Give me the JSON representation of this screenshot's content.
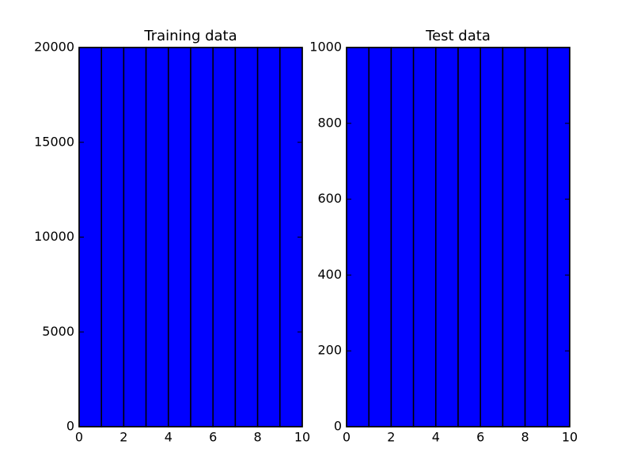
{
  "chart_data": [
    {
      "type": "histogram",
      "title": "Training data",
      "bins": [
        0,
        1,
        2,
        3,
        4,
        5,
        6,
        7,
        8,
        9,
        10
      ],
      "counts": [
        20000,
        20000,
        20000,
        20000,
        20000,
        20000,
        20000,
        20000,
        20000,
        20000
      ],
      "color": "#0000ff",
      "xlim": [
        0,
        10
      ],
      "xticks": [
        0,
        2,
        4,
        6,
        8,
        10
      ],
      "ylim": [
        0,
        20000
      ],
      "yticks": [
        0,
        5000,
        10000,
        15000,
        20000
      ]
    },
    {
      "type": "histogram",
      "title": "Test data",
      "bins": [
        0,
        1,
        2,
        3,
        4,
        5,
        6,
        7,
        8,
        9,
        10
      ],
      "counts": [
        1000,
        1000,
        1000,
        1000,
        1000,
        1000,
        1000,
        1000,
        1000,
        1000
      ],
      "color": "#0000ff",
      "xlim": [
        0,
        10
      ],
      "xticks": [
        0,
        2,
        4,
        6,
        8,
        10
      ],
      "ylim": [
        0,
        1000
      ],
      "yticks": [
        0,
        200,
        400,
        600,
        800,
        1000
      ]
    }
  ]
}
